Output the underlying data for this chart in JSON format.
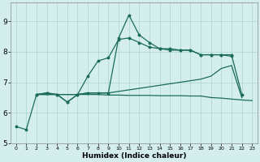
{
  "xlabel": "Humidex (Indice chaleur)",
  "bg_color": "#d4eeee",
  "line_color": "#1a6b5a",
  "grid_color": "#aad4d4",
  "xlim": [
    -0.5,
    23.5
  ],
  "ylim": [
    5.0,
    9.6
  ],
  "xticks": [
    0,
    1,
    2,
    3,
    4,
    5,
    6,
    7,
    8,
    9,
    10,
    11,
    12,
    13,
    14,
    15,
    16,
    17,
    18,
    19,
    20,
    21,
    22,
    23
  ],
  "yticks": [
    5,
    6,
    7,
    8,
    9
  ],
  "line1_x": [
    0,
    1,
    2,
    3,
    4,
    5,
    6,
    7,
    8,
    9,
    10,
    11,
    12,
    13,
    14,
    15,
    16,
    17,
    18,
    19,
    20,
    21
  ],
  "line1_y": [
    5.55,
    5.45,
    6.6,
    6.65,
    6.6,
    6.35,
    6.6,
    6.65,
    6.65,
    6.65,
    8.45,
    9.2,
    8.55,
    8.3,
    8.1,
    8.1,
    8.05,
    8.05,
    7.9,
    7.9,
    7.9,
    7.85
  ],
  "line2_x": [
    2,
    3,
    4,
    5,
    6,
    7,
    8,
    9,
    10,
    11,
    12,
    13,
    14,
    15,
    16,
    17,
    18,
    19,
    20,
    21,
    22
  ],
  "line2_y": [
    6.6,
    6.6,
    6.6,
    6.6,
    6.6,
    6.65,
    6.65,
    6.65,
    6.7,
    6.75,
    6.8,
    6.85,
    6.9,
    6.95,
    7.0,
    7.05,
    7.1,
    7.2,
    7.45,
    7.55,
    6.5
  ],
  "line3_x": [
    2,
    3,
    4,
    5,
    6,
    7,
    8,
    9,
    10,
    11,
    12,
    13,
    14,
    15,
    16,
    17,
    18,
    19,
    20,
    21,
    22
  ],
  "line3_y": [
    6.6,
    6.65,
    6.6,
    6.35,
    6.6,
    7.2,
    7.7,
    7.8,
    8.4,
    8.45,
    8.3,
    8.15,
    8.1,
    8.05,
    8.05,
    8.05,
    7.9,
    7.9,
    7.9,
    7.9,
    6.6
  ],
  "line4_x": [
    2,
    3,
    4,
    5,
    6,
    7,
    8,
    9,
    10,
    11,
    12,
    13,
    14,
    15,
    16,
    17,
    18,
    19,
    20,
    21,
    22,
    23
  ],
  "line4_y": [
    6.6,
    6.6,
    6.6,
    6.6,
    6.6,
    6.6,
    6.6,
    6.58,
    6.58,
    6.57,
    6.57,
    6.57,
    6.56,
    6.56,
    6.56,
    6.55,
    6.55,
    6.5,
    6.48,
    6.45,
    6.42,
    6.4
  ]
}
